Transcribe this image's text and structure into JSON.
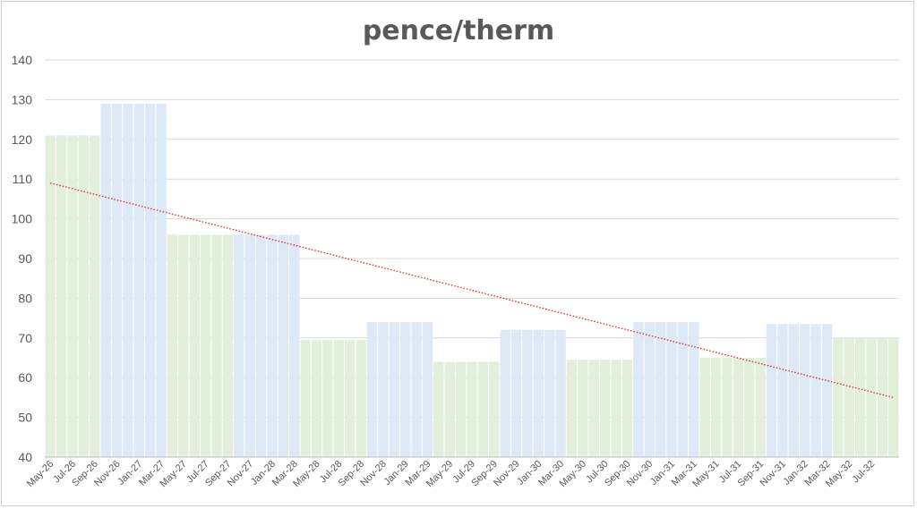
{
  "chart_data": {
    "type": "bar",
    "title": "pence/therm",
    "xlabel": "",
    "ylabel": "",
    "ylim": [
      40,
      140
    ],
    "yticks": [
      40,
      50,
      60,
      70,
      80,
      90,
      100,
      110,
      120,
      130,
      140
    ],
    "grid": true,
    "legend": "none",
    "categories": [
      "May-26",
      "Jun-26",
      "Jul-26",
      "Aug-26",
      "Sep-26",
      "Oct-26",
      "Nov-26",
      "Dec-26",
      "Jan-27",
      "Feb-27",
      "Mar-27",
      "Apr-27",
      "May-27",
      "Jun-27",
      "Jul-27",
      "Aug-27",
      "Sep-27",
      "Oct-27",
      "Nov-27",
      "Dec-27",
      "Jan-28",
      "Feb-28",
      "Mar-28",
      "Apr-28",
      "May-28",
      "Jun-28",
      "Jul-28",
      "Aug-28",
      "Sep-28",
      "Oct-28",
      "Nov-28",
      "Dec-28",
      "Jan-29",
      "Feb-29",
      "Mar-29",
      "Apr-29",
      "May-29",
      "Jun-29",
      "Jul-29",
      "Aug-29",
      "Sep-29",
      "Oct-29",
      "Nov-29",
      "Dec-29",
      "Jan-30",
      "Feb-30",
      "Mar-30",
      "Apr-30",
      "May-30",
      "Jun-30",
      "Jul-30",
      "Aug-30",
      "Sep-30",
      "Oct-30",
      "Nov-30",
      "Dec-30",
      "Jan-31",
      "Feb-31",
      "Mar-31",
      "Apr-31",
      "May-31",
      "Jun-31",
      "Jul-31",
      "Aug-31",
      "Sep-31",
      "Oct-31",
      "Nov-31",
      "Dec-31",
      "Jan-32",
      "Feb-32",
      "Mar-32",
      "Apr-32",
      "May-32",
      "Jun-32",
      "Jul-32",
      "Aug-32",
      "Sep-32"
    ],
    "xtick_labels": [
      "May-26",
      "Jul-26",
      "Sep-26",
      "Nov-26",
      "Jan-27",
      "Mar-27",
      "May-27",
      "Jul-27",
      "Sep-27",
      "Nov-27",
      "Jan-28",
      "Mar-28",
      "May-28",
      "Jul-28",
      "Sep-28",
      "Nov-28",
      "Jan-29",
      "Mar-29",
      "May-29",
      "Jul-29",
      "Sep-29",
      "Nov-29",
      "Jan-30",
      "Mar-30",
      "May-30",
      "Jul-30",
      "Sep-30",
      "Nov-30",
      "Jan-31",
      "Mar-31",
      "May-31",
      "Jul-31",
      "Sep-31",
      "Nov-31",
      "Jan-32",
      "Mar-32",
      "May-32",
      "Jul-32"
    ],
    "values": [
      121,
      121,
      121,
      121,
      121,
      129,
      129,
      129,
      129,
      129,
      129,
      96,
      96,
      96,
      96,
      96,
      96,
      96,
      96,
      96,
      96,
      96,
      96,
      69.5,
      69.5,
      69.5,
      69.5,
      69.5,
      69.5,
      74,
      74,
      74,
      74,
      74,
      74,
      64,
      64,
      64,
      64,
      64,
      64,
      72,
      72,
      72,
      72,
      72,
      72,
      64.5,
      64.5,
      64.5,
      64.5,
      64.5,
      64.5,
      74,
      74,
      74,
      74,
      74,
      74,
      65,
      65,
      65,
      65,
      65,
      65,
      73.5,
      73.5,
      73.5,
      73.5,
      73.5,
      73.5,
      70,
      70,
      70,
      70,
      70,
      70
    ],
    "bar_colors": [
      "#e2efda",
      "#e2efda",
      "#e2efda",
      "#e2efda",
      "#e2efda",
      "#dde9f6",
      "#dde9f6",
      "#dde9f6",
      "#dde9f6",
      "#dde9f6",
      "#dde9f6",
      "#e2efda",
      "#e2efda",
      "#e2efda",
      "#e2efda",
      "#e2efda",
      "#e2efda",
      "#dde9f6",
      "#dde9f6",
      "#dde9f6",
      "#dde9f6",
      "#dde9f6",
      "#dde9f6",
      "#e2efda",
      "#e2efda",
      "#e2efda",
      "#e2efda",
      "#e2efda",
      "#e2efda",
      "#dde9f6",
      "#dde9f6",
      "#dde9f6",
      "#dde9f6",
      "#dde9f6",
      "#dde9f6",
      "#e2efda",
      "#e2efda",
      "#e2efda",
      "#e2efda",
      "#e2efda",
      "#e2efda",
      "#dde9f6",
      "#dde9f6",
      "#dde9f6",
      "#dde9f6",
      "#dde9f6",
      "#dde9f6",
      "#e2efda",
      "#e2efda",
      "#e2efda",
      "#e2efda",
      "#e2efda",
      "#e2efda",
      "#dde9f6",
      "#dde9f6",
      "#dde9f6",
      "#dde9f6",
      "#dde9f6",
      "#dde9f6",
      "#e2efda",
      "#e2efda",
      "#e2efda",
      "#e2efda",
      "#e2efda",
      "#e2efda",
      "#dde9f6",
      "#dde9f6",
      "#dde9f6",
      "#dde9f6",
      "#dde9f6",
      "#dde9f6",
      "#e2efda",
      "#e2efda",
      "#e2efda",
      "#e2efda",
      "#e2efda",
      "#e2efda"
    ],
    "trendline": {
      "type": "linear",
      "start": 109,
      "end": 55,
      "color": "#e03030",
      "style": "dotted"
    },
    "colors": {
      "grid": "#d9d9d9",
      "axis": "#bfbfbf",
      "text": "#595959"
    }
  }
}
